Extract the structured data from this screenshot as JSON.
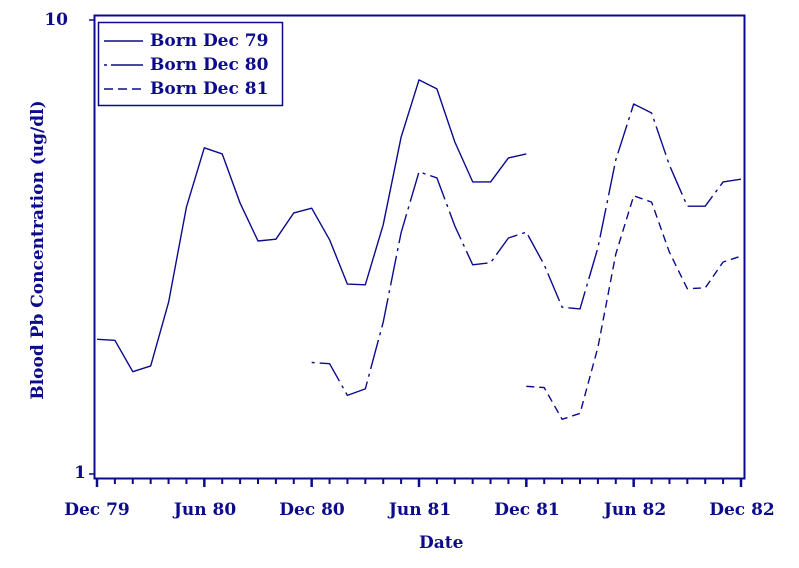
{
  "chart_data": {
    "type": "line",
    "title": "",
    "xlabel": "Date",
    "ylabel": "Blood Pb Concentration (ug/dl)",
    "yscale": "log",
    "ylim": [
      1,
      10
    ],
    "ytick_labels": [
      "1",
      "10"
    ],
    "xtick_labels": [
      "Dec 79",
      "Jun 80",
      "Dec 80",
      "Jun 81",
      "Dec 81",
      "Jun 82",
      "Dec 82"
    ],
    "x_range_months": [
      0,
      36
    ],
    "x_minor_ticks": "monthly",
    "grid": false,
    "legend_position": "upper left (inside)",
    "series": [
      {
        "name": "Born Dec 79",
        "linestyle": "solid",
        "start_month": 0,
        "values": [
          1.98,
          1.97,
          1.68,
          1.73,
          2.39,
          3.87,
          5.23,
          5.07,
          3.95,
          3.26,
          3.29,
          3.76,
          3.85,
          3.28,
          2.62,
          2.61,
          3.54,
          5.52,
          7.38,
          7.05,
          5.39,
          4.4,
          4.4,
          4.97,
          5.07
        ]
      },
      {
        "name": "Born Dec 80",
        "linestyle": "dashdot",
        "start_month": 12,
        "values": [
          1.76,
          1.75,
          1.49,
          1.54,
          2.16,
          3.4,
          4.63,
          4.49,
          3.52,
          2.89,
          2.92,
          3.31,
          3.41,
          2.89,
          2.33,
          2.31,
          3.15,
          4.92,
          6.53,
          6.24,
          4.79,
          3.89,
          3.89,
          4.4,
          4.46
        ]
      },
      {
        "name": "Born Dec 81",
        "linestyle": "dashed",
        "start_month": 24,
        "values": [
          1.56,
          1.55,
          1.32,
          1.36,
          1.9,
          3.05,
          4.1,
          3.97,
          3.08,
          2.56,
          2.57,
          2.93,
          3.02
        ]
      }
    ]
  },
  "colors": {
    "ink": "#0b0b8c",
    "background": "#ffffff"
  }
}
